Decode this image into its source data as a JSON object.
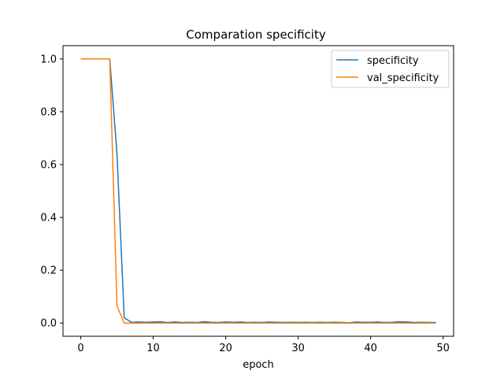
{
  "chart_data": {
    "type": "line",
    "title": "Comparation specificity",
    "xlabel": "epoch",
    "ylabel": "",
    "xlim": [
      -2.45,
      51.45
    ],
    "ylim": [
      -0.05,
      1.05
    ],
    "xticks": [
      0,
      10,
      20,
      30,
      40,
      50
    ],
    "xtick_labels": [
      "0",
      "10",
      "20",
      "30",
      "40",
      "50"
    ],
    "yticks": [
      0.0,
      0.2,
      0.4,
      0.6,
      0.8,
      1.0
    ],
    "ytick_labels": [
      "0.0",
      "0.2",
      "0.4",
      "0.6",
      "0.8",
      "1.0"
    ],
    "grid": false,
    "legend_position": "top-right",
    "x": [
      0,
      1,
      2,
      3,
      4,
      5,
      6,
      7,
      8,
      9,
      10,
      11,
      12,
      13,
      14,
      15,
      16,
      17,
      18,
      19,
      20,
      21,
      22,
      23,
      24,
      25,
      26,
      27,
      28,
      29,
      30,
      31,
      32,
      33,
      34,
      35,
      36,
      37,
      38,
      39,
      40,
      41,
      42,
      43,
      44,
      45,
      46,
      47,
      48,
      49
    ],
    "series": [
      {
        "name": "specificity",
        "color": "#1f77b4",
        "values": [
          1.0,
          1.0,
          1.0,
          1.0,
          1.0,
          0.64,
          0.02,
          0.003,
          0.004,
          0.003,
          0.004,
          0.005,
          0.002,
          0.004,
          0.002,
          0.003,
          0.002,
          0.005,
          0.003,
          0.002,
          0.004,
          0.003,
          0.004,
          0.002,
          0.003,
          0.002,
          0.004,
          0.003,
          0.002,
          0.003,
          0.002,
          0.003,
          0.002,
          0.003,
          0.002,
          0.003,
          0.002,
          0.001,
          0.004,
          0.003,
          0.003,
          0.004,
          0.002,
          0.003,
          0.005,
          0.004,
          0.002,
          0.003,
          0.002,
          0.002
        ]
      },
      {
        "name": "val_specificity",
        "color": "#ff7f0e",
        "values": [
          1.0,
          1.0,
          1.0,
          1.0,
          1.0,
          0.065,
          0.0,
          0.0,
          0.0,
          0.0,
          0.0,
          0.0,
          0.0,
          0.0,
          0.0,
          0.0,
          0.0,
          0.0,
          0.0,
          0.0,
          0.0,
          0.0,
          0.0,
          0.0,
          0.0,
          0.0,
          0.0,
          0.0,
          0.0,
          0.0,
          0.0,
          0.0,
          0.0,
          0.0,
          0.0,
          0.0,
          0.0,
          0.0,
          0.0,
          0.0,
          0.0,
          0.0,
          0.0,
          0.0,
          0.0,
          0.0,
          0.0,
          0.0,
          0.0,
          0.0
        ]
      }
    ]
  }
}
